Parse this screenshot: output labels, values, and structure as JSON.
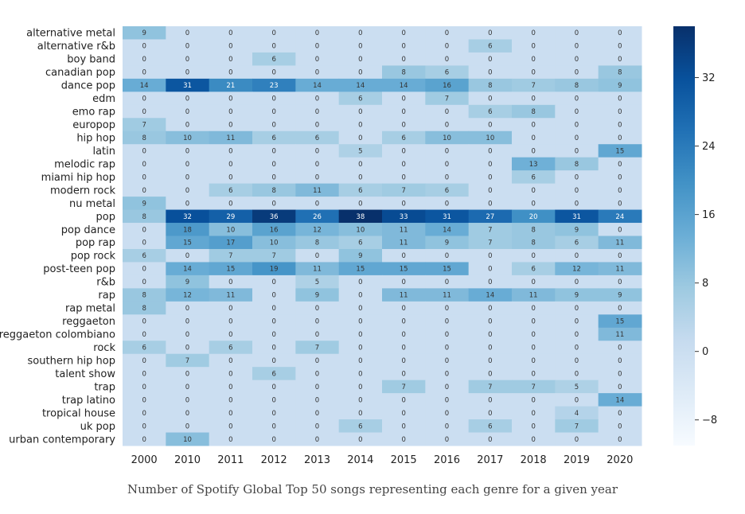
{
  "chart_data": {
    "type": "heatmap",
    "caption": "Number of Spotify Global Top 50 songs representing each genre for a given year",
    "x": [
      "2000",
      "2010",
      "2011",
      "2012",
      "2013",
      "2014",
      "2015",
      "2016",
      "2017",
      "2018",
      "2019",
      "2020"
    ],
    "y": [
      "alternative metal",
      "alternative r&b",
      "boy band",
      "canadian pop",
      "dance pop",
      "edm",
      "emo rap",
      "europop",
      "hip hop",
      "latin",
      "melodic rap",
      "miami hip hop",
      "modern rock",
      "nu metal",
      "pop",
      "pop dance",
      "pop rap",
      "pop rock",
      "post-teen pop",
      "r&b",
      "rap",
      "rap metal",
      "reggaeton",
      "reggaeton colombiano",
      "rock",
      "southern hip hop",
      "talent show",
      "trap",
      "trap latino",
      "tropical house",
      "uk pop",
      "urban contemporary"
    ],
    "values": [
      [
        9,
        0,
        0,
        0,
        0,
        0,
        0,
        0,
        0,
        0,
        0,
        0
      ],
      [
        0,
        0,
        0,
        0,
        0,
        0,
        0,
        0,
        6,
        0,
        0,
        0
      ],
      [
        0,
        0,
        0,
        6,
        0,
        0,
        0,
        0,
        0,
        0,
        0,
        0
      ],
      [
        0,
        0,
        0,
        0,
        0,
        0,
        8,
        6,
        0,
        0,
        0,
        8
      ],
      [
        14,
        31,
        21,
        23,
        14,
        14,
        14,
        16,
        8,
        7,
        8,
        9
      ],
      [
        0,
        0,
        0,
        0,
        0,
        6,
        0,
        7,
        0,
        0,
        0,
        0
      ],
      [
        0,
        0,
        0,
        0,
        0,
        0,
        0,
        0,
        6,
        8,
        0,
        0
      ],
      [
        7,
        0,
        0,
        0,
        0,
        0,
        0,
        0,
        0,
        0,
        0,
        0
      ],
      [
        8,
        10,
        11,
        6,
        6,
        0,
        6,
        10,
        10,
        0,
        0,
        0
      ],
      [
        0,
        0,
        0,
        0,
        0,
        5,
        0,
        0,
        0,
        0,
        0,
        15
      ],
      [
        0,
        0,
        0,
        0,
        0,
        0,
        0,
        0,
        0,
        13,
        8,
        0
      ],
      [
        0,
        0,
        0,
        0,
        0,
        0,
        0,
        0,
        0,
        6,
        0,
        0
      ],
      [
        0,
        0,
        6,
        8,
        11,
        6,
        7,
        6,
        0,
        0,
        0,
        0
      ],
      [
        9,
        0,
        0,
        0,
        0,
        0,
        0,
        0,
        0,
        0,
        0,
        0
      ],
      [
        8,
        32,
        29,
        36,
        26,
        38,
        33,
        31,
        27,
        20,
        31,
        24
      ],
      [
        0,
        18,
        10,
        16,
        12,
        10,
        11,
        14,
        7,
        8,
        9,
        0
      ],
      [
        0,
        15,
        17,
        10,
        8,
        6,
        11,
        9,
        7,
        8,
        6,
        11
      ],
      [
        6,
        0,
        7,
        7,
        0,
        9,
        0,
        0,
        0,
        0,
        0,
        0
      ],
      [
        0,
        14,
        15,
        19,
        11,
        15,
        15,
        15,
        0,
        6,
        12,
        11
      ],
      [
        0,
        9,
        0,
        0,
        5,
        0,
        0,
        0,
        0,
        0,
        0,
        0
      ],
      [
        8,
        12,
        11,
        0,
        9,
        0,
        11,
        11,
        14,
        11,
        9,
        9
      ],
      [
        8,
        0,
        0,
        0,
        0,
        0,
        0,
        0,
        0,
        0,
        0,
        0
      ],
      [
        0,
        0,
        0,
        0,
        0,
        0,
        0,
        0,
        0,
        0,
        0,
        15
      ],
      [
        0,
        0,
        0,
        0,
        0,
        0,
        0,
        0,
        0,
        0,
        0,
        11
      ],
      [
        6,
        0,
        6,
        0,
        7,
        0,
        0,
        0,
        0,
        0,
        0,
        0
      ],
      [
        0,
        7,
        0,
        0,
        0,
        0,
        0,
        0,
        0,
        0,
        0,
        0
      ],
      [
        0,
        0,
        0,
        6,
        0,
        0,
        0,
        0,
        0,
        0,
        0,
        0
      ],
      [
        0,
        0,
        0,
        0,
        0,
        0,
        7,
        0,
        7,
        7,
        5,
        0
      ],
      [
        0,
        0,
        0,
        0,
        0,
        0,
        0,
        0,
        0,
        0,
        0,
        14
      ],
      [
        0,
        0,
        0,
        0,
        0,
        0,
        0,
        0,
        0,
        0,
        4,
        0
      ],
      [
        0,
        0,
        0,
        0,
        0,
        6,
        0,
        0,
        6,
        0,
        7,
        0
      ],
      [
        0,
        10,
        0,
        0,
        0,
        0,
        0,
        0,
        0,
        0,
        0,
        0
      ]
    ],
    "colorbar": {
      "min": -11,
      "max": 38,
      "ticks": [
        32,
        24,
        16,
        8,
        0,
        -8
      ],
      "colors_low_to_high": [
        "#f7fbff",
        "#deebf7",
        "#c6dbef",
        "#9ecae1",
        "#6baed6",
        "#4292c6",
        "#2171b5",
        "#08519c",
        "#08306b"
      ]
    }
  }
}
